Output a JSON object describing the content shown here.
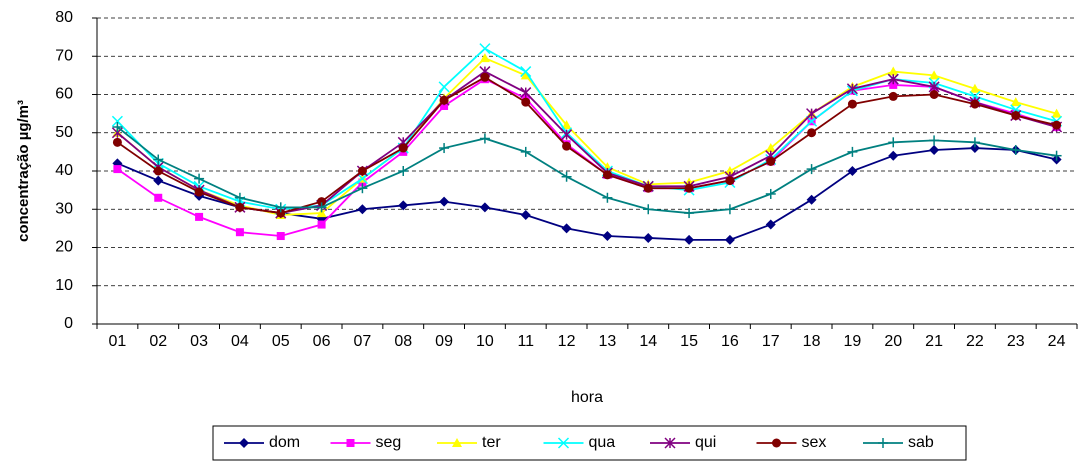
{
  "chart_data": {
    "type": "line",
    "y_label": "concentração µg/m³",
    "x_label": "hora",
    "categories": [
      "01",
      "02",
      "03",
      "04",
      "05",
      "06",
      "07",
      "08",
      "09",
      "10",
      "11",
      "12",
      "13",
      "14",
      "15",
      "16",
      "17",
      "18",
      "19",
      "20",
      "21",
      "22",
      "23",
      "24"
    ],
    "ylim": [
      0,
      80
    ],
    "yticks": [
      0,
      10,
      20,
      30,
      40,
      50,
      60,
      70,
      80
    ],
    "grid": true,
    "legend": "bottom",
    "series": [
      {
        "name": "dom",
        "color": "#000080",
        "marker": "diamond",
        "values": [
          42,
          37.5,
          33.5,
          30.5,
          29,
          27.5,
          30,
          31,
          32,
          30.5,
          28.5,
          25,
          23,
          22.5,
          22,
          22,
          26,
          32.5,
          40,
          44,
          45.5,
          46,
          45.5,
          43
        ]
      },
      {
        "name": "seg",
        "color": "#ff00ff",
        "marker": "square",
        "values": [
          40.5,
          33,
          28,
          24,
          23,
          26,
          37,
          45,
          57,
          64,
          59,
          47,
          39,
          35.5,
          35.5,
          37.5,
          42.5,
          53,
          61,
          62.5,
          62,
          58,
          55,
          51.5
        ]
      },
      {
        "name": "ter",
        "color": "#ffff00",
        "marker": "triangle",
        "values": [
          50,
          41,
          35,
          31,
          28.5,
          29,
          38,
          46,
          59,
          69.5,
          65,
          52,
          41,
          36.5,
          37,
          40,
          46,
          55,
          62,
          66,
          65,
          61.5,
          58,
          55
        ]
      },
      {
        "name": "qua",
        "color": "#00ffff",
        "marker": "x",
        "values": [
          53,
          42,
          36,
          32,
          30,
          31,
          38,
          46,
          62,
          72,
          66,
          50,
          40,
          36,
          35,
          37,
          43,
          53,
          61,
          64,
          63,
          59.5,
          56,
          53
        ]
      },
      {
        "name": "qui",
        "color": "#800080",
        "marker": "star",
        "values": [
          50,
          41,
          35,
          30.5,
          29,
          31,
          40,
          47.5,
          58.5,
          66,
          60.5,
          49.5,
          39.5,
          36,
          36,
          38.5,
          44,
          55,
          61.5,
          64,
          62,
          58,
          54.5,
          51.5
        ]
      },
      {
        "name": "sex",
        "color": "#800000",
        "marker": "circle",
        "values": [
          47.5,
          40,
          34.5,
          30.5,
          29,
          32,
          40,
          46,
          58.5,
          64.5,
          58,
          46.5,
          39,
          35.5,
          35.5,
          37.5,
          42.5,
          50,
          57.5,
          59.5,
          60,
          57.5,
          54.5,
          52
        ]
      },
      {
        "name": "sab",
        "color": "#008080",
        "marker": "plus",
        "values": [
          51.5,
          43,
          38,
          33,
          30.5,
          30.5,
          35.5,
          40,
          46,
          48.5,
          45,
          38.5,
          33,
          30,
          29,
          30,
          34,
          40.5,
          45,
          47.5,
          48,
          47.5,
          45.5,
          44
        ]
      }
    ]
  }
}
